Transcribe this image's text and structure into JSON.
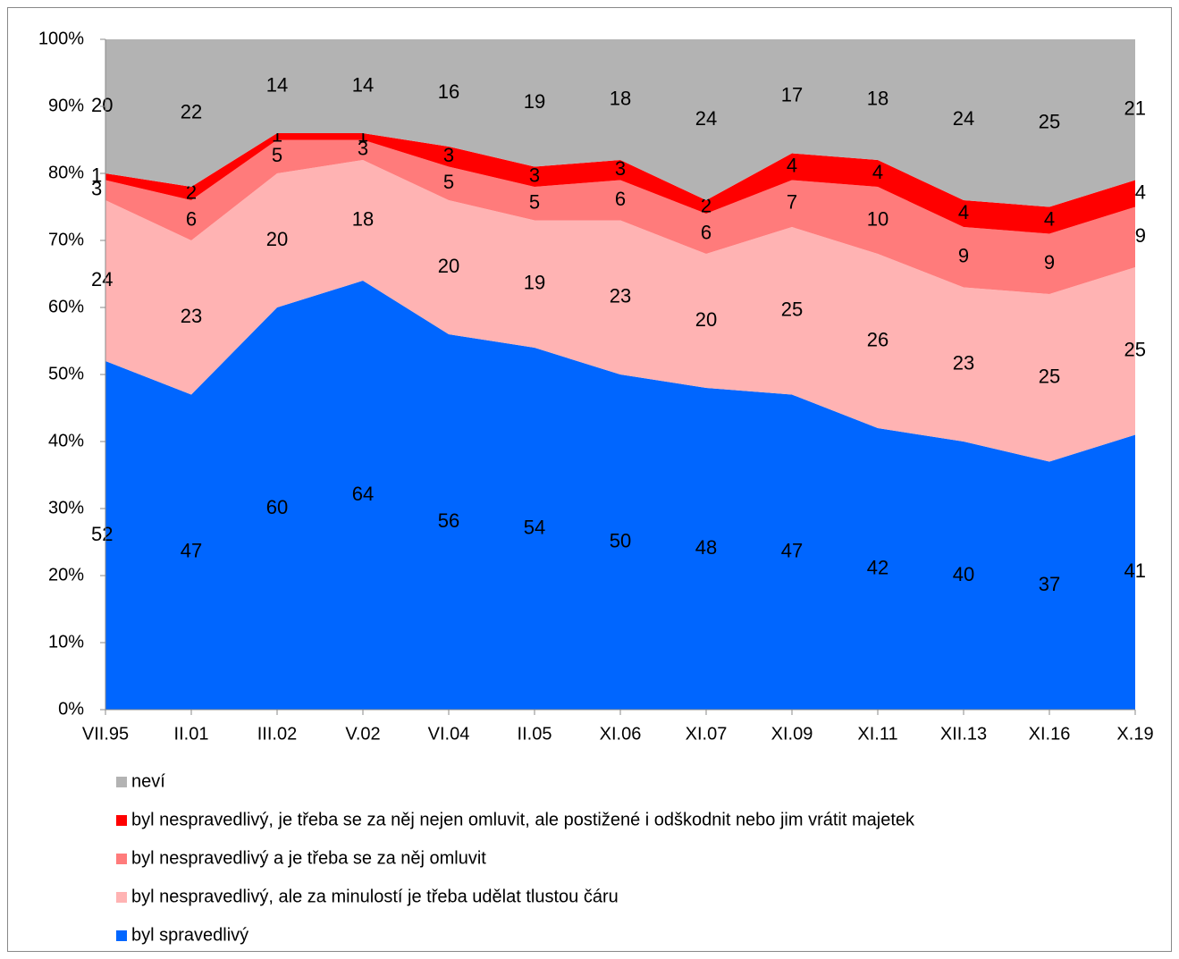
{
  "chart_data": {
    "type": "stacked_area",
    "categories": [
      "VII.95",
      "II.01",
      "III.02",
      "V.02",
      "VI.04",
      "II.05",
      "XI.06",
      "XI.07",
      "XI.09",
      "XI.11",
      "XII.13",
      "XI.16",
      "X.19"
    ],
    "series": [
      {
        "name": "byl spravedlivý",
        "color": "#0066ff",
        "values": [
          52,
          47,
          60,
          64,
          56,
          54,
          50,
          48,
          47,
          42,
          40,
          37,
          41
        ]
      },
      {
        "name": "byl nespravedlivý, ale za minulostí je třeba udělat tlustou čáru",
        "color": "#ffb3b3",
        "values": [
          24,
          23,
          20,
          18,
          20,
          19,
          23,
          20,
          25,
          26,
          23,
          25,
          25
        ]
      },
      {
        "name": "byl nespravedlivý a je třeba se za něj omluvit",
        "color": "#ff7b7b",
        "values": [
          3,
          6,
          5,
          3,
          5,
          5,
          6,
          6,
          7,
          10,
          9,
          9,
          9
        ]
      },
      {
        "name": "byl nespravedlivý, je třeba se za něj nejen omluvit, ale postižené  i odškodnit nebo jim vrátit majetek",
        "color": "#ff0000",
        "values": [
          1,
          2,
          1,
          1,
          3,
          3,
          3,
          2,
          4,
          4,
          4,
          4,
          4
        ]
      },
      {
        "name": "neví",
        "color": "#b3b3b3",
        "values": [
          20,
          22,
          14,
          14,
          16,
          19,
          18,
          24,
          17,
          18,
          24,
          25,
          21
        ]
      }
    ],
    "ylim": [
      0,
      100
    ],
    "yticks": [
      {
        "value": 0,
        "label": "0%"
      },
      {
        "value": 10,
        "label": "10%"
      },
      {
        "value": 20,
        "label": "20%"
      },
      {
        "value": 30,
        "label": "30%"
      },
      {
        "value": 40,
        "label": "40%"
      },
      {
        "value": 50,
        "label": "50%"
      },
      {
        "value": 60,
        "label": "60%"
      },
      {
        "value": 70,
        "label": "70%"
      },
      {
        "value": 80,
        "label": "80%"
      },
      {
        "value": 90,
        "label": "90%"
      },
      {
        "value": 100,
        "label": "100%"
      }
    ],
    "legend": "bottom-left"
  }
}
